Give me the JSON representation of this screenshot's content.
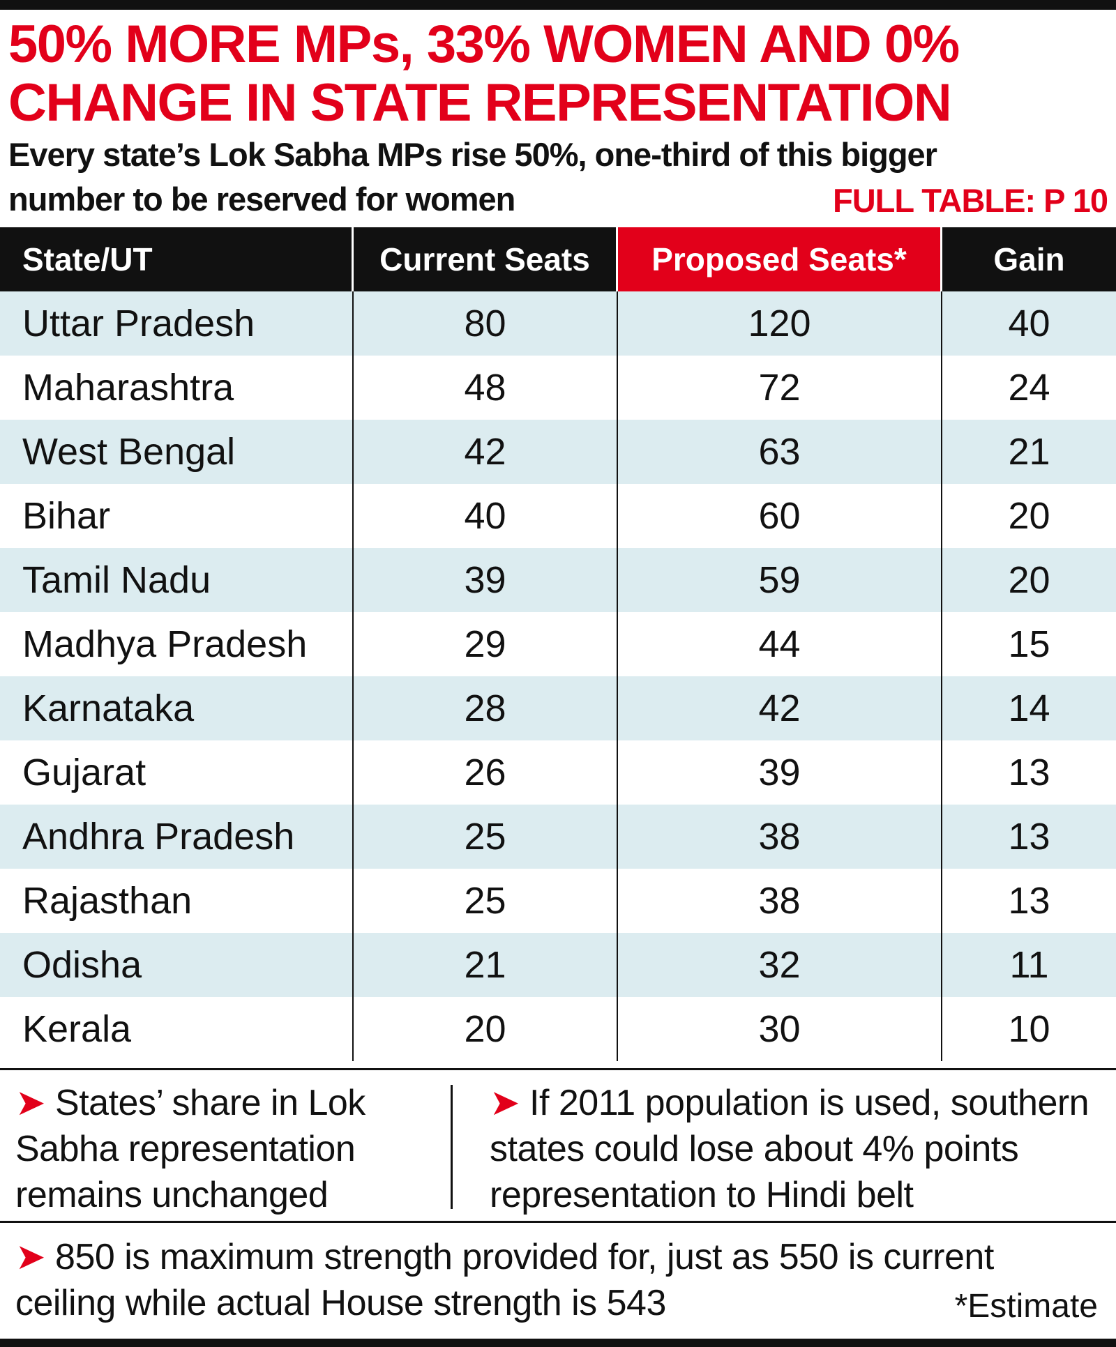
{
  "header": {
    "title": "50% MORE MPs, 33% WOMEN AND 0% CHANGE IN STATE REPRESENTATION",
    "subtitle": "Every state’s Lok Sabha MPs rise 50%, one-third of this bigger number to be reserved for women",
    "reference": "FULL TABLE: P 10"
  },
  "table": {
    "columns": [
      "State/UT",
      "Current Seats",
      "Proposed Seats*",
      "Gain"
    ],
    "rows": [
      [
        "Uttar Pradesh",
        80,
        120,
        40
      ],
      [
        "Maharashtra",
        48,
        72,
        24
      ],
      [
        "West Bengal",
        42,
        63,
        21
      ],
      [
        "Bihar",
        40,
        60,
        20
      ],
      [
        "Tamil Nadu",
        39,
        59,
        20
      ],
      [
        "Madhya Pradesh",
        29,
        44,
        15
      ],
      [
        "Karnataka",
        28,
        42,
        14
      ],
      [
        "Gujarat",
        26,
        39,
        13
      ],
      [
        "Andhra Pradesh",
        25,
        38,
        13
      ],
      [
        "Rajasthan",
        25,
        38,
        13
      ],
      [
        "Odisha",
        21,
        32,
        11
      ],
      [
        "Kerala",
        20,
        30,
        10
      ]
    ]
  },
  "notes": [
    "States’ share in Lok Sabha representation remains unchanged",
    "If 2011 population  is used, southern states could lose about 4% points representation to Hindi belt",
    "850 is maximum strength provided for, just as 550 is current ceiling while actual House strength is 543"
  ],
  "footnote": "*Estimate"
}
